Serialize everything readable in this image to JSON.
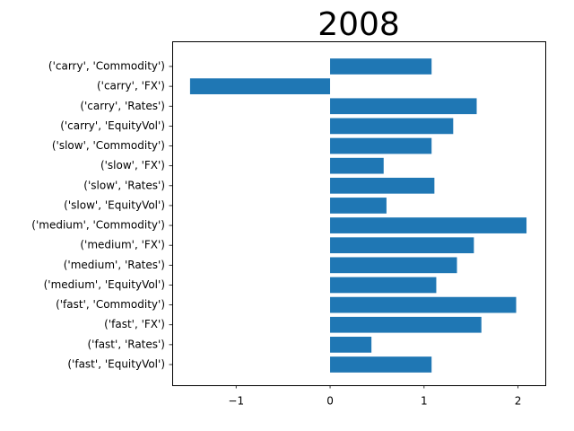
{
  "chart_data": {
    "type": "bar",
    "orientation": "horizontal",
    "title": "2008",
    "xlabel": "",
    "ylabel": "",
    "categories": [
      "('carry', 'Commodity')",
      "('carry', 'FX')",
      "('carry', 'Rates')",
      "('carry', 'EquityVol')",
      "('slow', 'Commodity')",
      "('slow', 'FX')",
      "('slow', 'Rates')",
      "('slow', 'EquityVol')",
      "('medium', 'Commodity')",
      "('medium', 'FX')",
      "('medium', 'Rates')",
      "('medium', 'EquityVol')",
      "('fast', 'Commodity')",
      "('fast', 'FX')",
      "('fast', 'Rates')",
      "('fast', 'EquityVol')"
    ],
    "values": [
      1.08,
      -1.49,
      1.56,
      1.31,
      1.08,
      0.57,
      1.11,
      0.6,
      2.09,
      1.53,
      1.35,
      1.13,
      1.98,
      1.61,
      0.44,
      1.08
    ],
    "xlim": [
      -1.68,
      2.29
    ],
    "xticks": [
      -1,
      0,
      1,
      2
    ],
    "xtick_labels": [
      "−1",
      "0",
      "1",
      "2"
    ],
    "bar_color": "#1f77b4",
    "grid": false
  }
}
